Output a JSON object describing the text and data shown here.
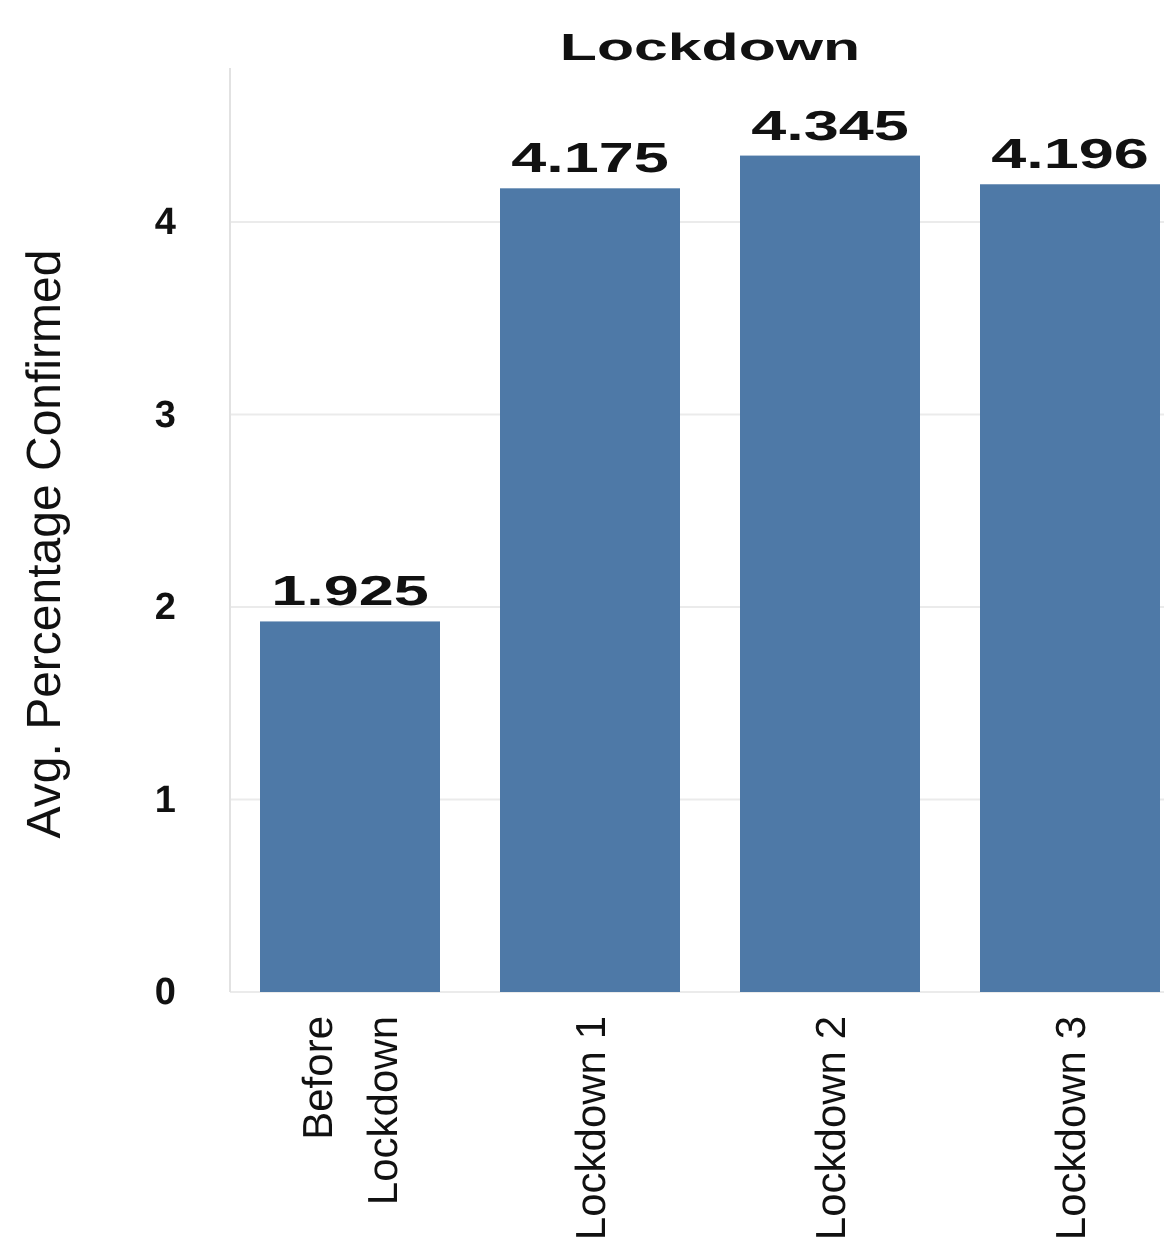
{
  "chart_data": {
    "type": "bar",
    "title": "Lockdown",
    "ylabel": "Avg. Percentage Confirmed",
    "categories": [
      "Before Lockdown",
      "Lockdown 1",
      "Lockdown 2",
      "Lockdown 3"
    ],
    "values": [
      1.925,
      4.175,
      4.345,
      4.196
    ],
    "color": "#4e79a7",
    "ylim": [
      0,
      4.8
    ],
    "yticks": [
      0,
      1,
      2,
      3,
      4
    ],
    "grid": "y",
    "data_labels": true
  }
}
